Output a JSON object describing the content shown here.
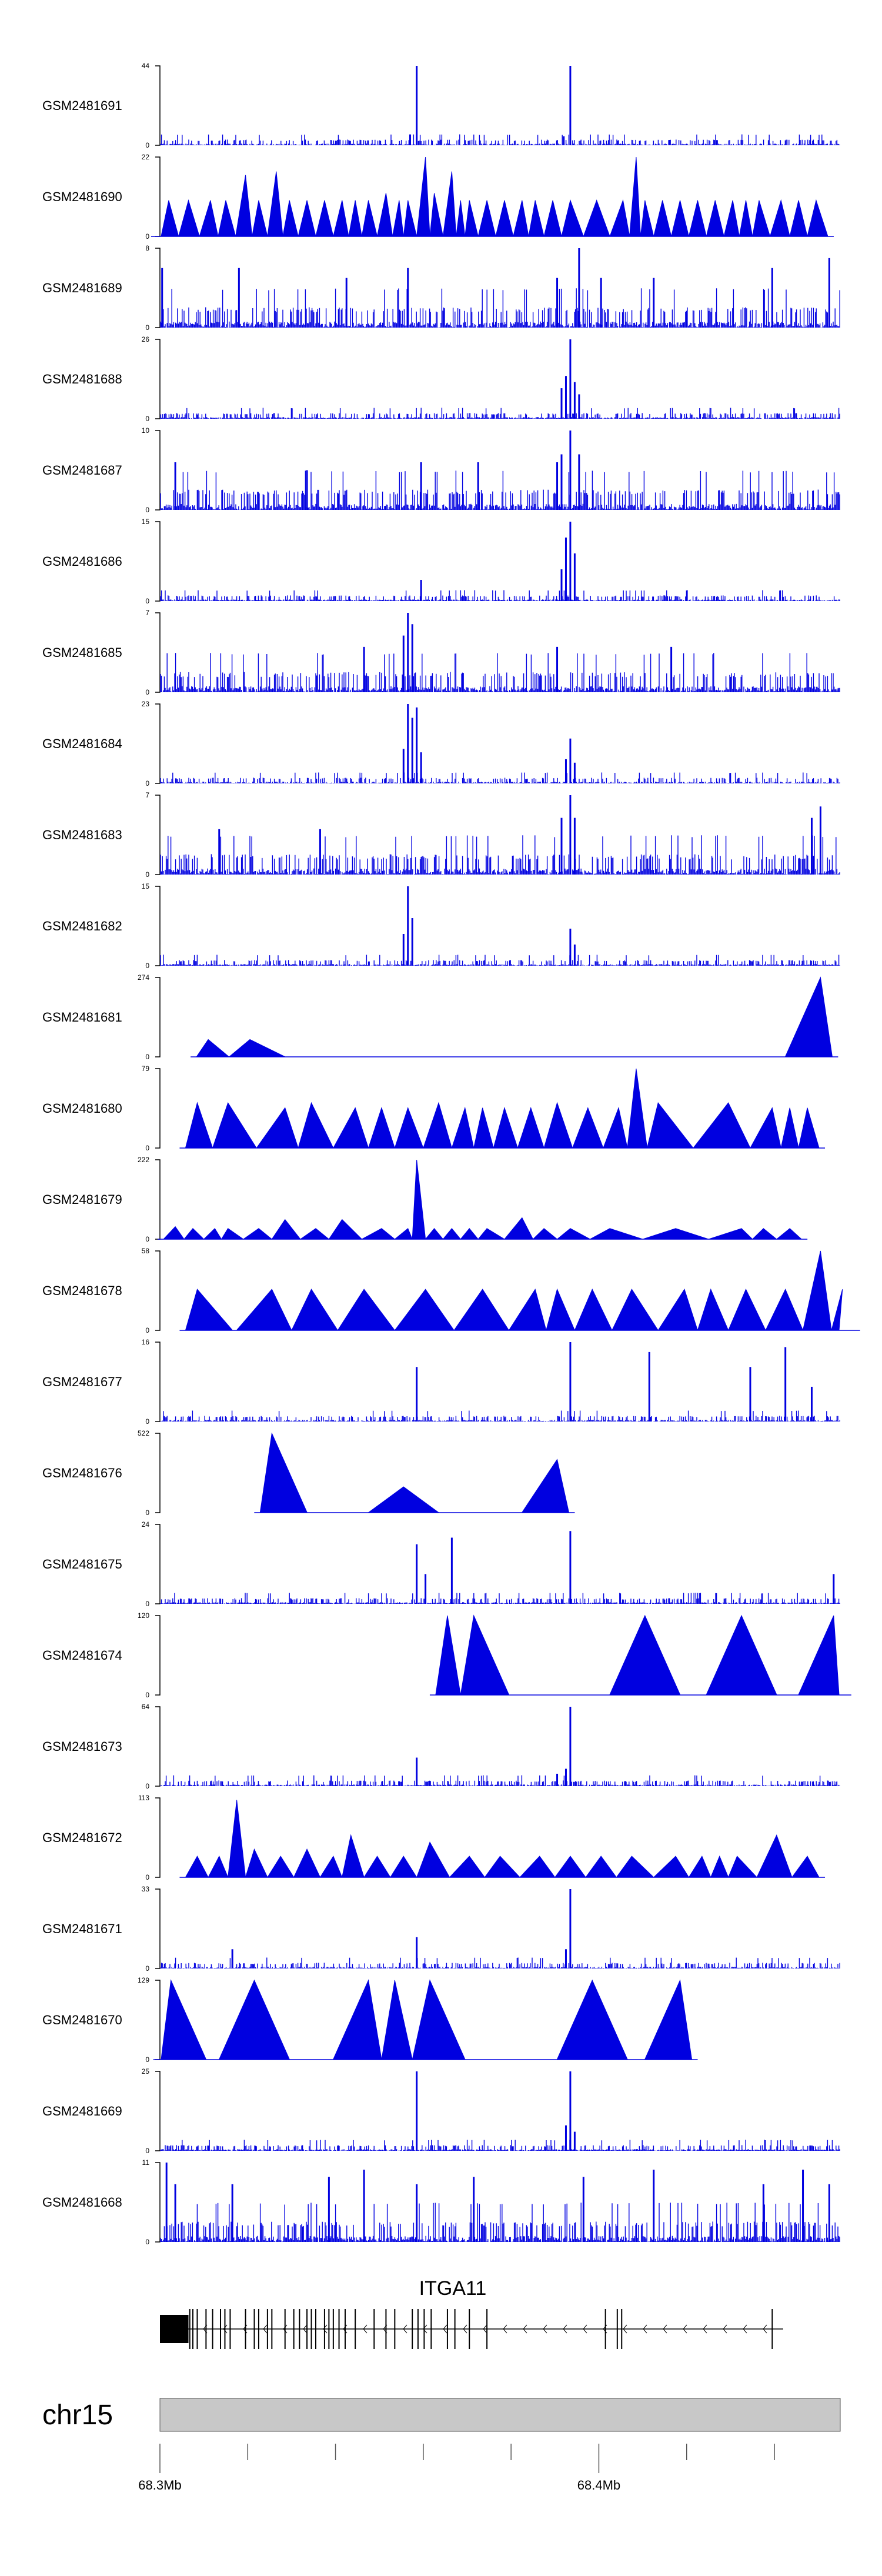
{
  "chart_data": {
    "type": "area",
    "description_ids": "coverage tracks for GEO samples over a genomic window on chr15",
    "chromosome": "chr15",
    "x_range_mb": [
      68.3,
      68.455
    ],
    "x_tick_labels": [
      {
        "pos": 68.3,
        "label": "68.3Mb"
      },
      {
        "pos": 68.4,
        "label": "68.4Mb"
      }
    ],
    "minor_ticks_mb": [
      68.32,
      68.34,
      68.36,
      68.38,
      68.42,
      68.44
    ],
    "gene": {
      "name": "ITGA11",
      "strand": "-",
      "start_mb": 68.3,
      "end_mb": 68.442,
      "thick_block_mb": [
        68.3,
        68.3065
      ],
      "exons_mb": [
        68.3068,
        68.3075,
        68.3085,
        68.3105,
        68.312,
        68.3138,
        68.3148,
        68.316,
        68.3195,
        68.3215,
        68.3225,
        68.3245,
        68.3255,
        68.3285,
        68.3305,
        68.3318,
        68.3335,
        68.3345,
        68.3355,
        68.3375,
        68.3385,
        68.3395,
        68.3408,
        68.3422,
        68.3445,
        68.3488,
        68.3515,
        68.3535,
        68.3575,
        68.3588,
        68.3602,
        68.3618,
        68.3655,
        68.3672,
        68.3705,
        68.3745,
        68.4015,
        68.4042,
        68.4052,
        68.4395
      ]
    },
    "tracks": [
      {
        "name": "GSM2481691",
        "ymax": 44,
        "style": "dense",
        "peaks": [
          [
            68.3585,
            44
          ],
          [
            68.3935,
            44
          ],
          [
            68.357,
            6
          ],
          [
            68.392,
            5
          ]
        ]
      },
      {
        "name": "GSM2481690",
        "ymax": 22,
        "style": "tri",
        "peaks": [
          [
            68.302,
            10
          ],
          [
            68.3065,
            10
          ],
          [
            68.3115,
            10
          ],
          [
            68.315,
            10
          ],
          [
            68.3195,
            17
          ],
          [
            68.3225,
            10
          ],
          [
            68.3265,
            18
          ],
          [
            68.3295,
            10
          ],
          [
            68.3335,
            10
          ],
          [
            68.3375,
            10
          ],
          [
            68.3415,
            10
          ],
          [
            68.3445,
            10
          ],
          [
            68.3475,
            10
          ],
          [
            68.3515,
            12
          ],
          [
            68.3545,
            10
          ],
          [
            68.3565,
            10
          ],
          [
            68.3605,
            22
          ],
          [
            68.3625,
            12
          ],
          [
            68.3665,
            18
          ],
          [
            68.3685,
            10
          ],
          [
            68.3705,
            10
          ],
          [
            68.3745,
            10
          ],
          [
            68.3785,
            10
          ],
          [
            68.3825,
            10
          ],
          [
            68.3855,
            10
          ],
          [
            68.3895,
            10
          ],
          [
            68.3935,
            10
          ],
          [
            68.3995,
            10
          ],
          [
            68.4055,
            10
          ],
          [
            68.4085,
            22
          ],
          [
            68.4105,
            10
          ],
          [
            68.4145,
            10
          ],
          [
            68.4185,
            10
          ],
          [
            68.4225,
            10
          ],
          [
            68.4265,
            10
          ],
          [
            68.4305,
            10
          ],
          [
            68.4335,
            10
          ],
          [
            68.4365,
            10
          ],
          [
            68.4415,
            10
          ],
          [
            68.4455,
            10
          ],
          [
            68.4495,
            10
          ]
        ]
      },
      {
        "name": "GSM2481689",
        "ymax": 8,
        "style": "dense",
        "peaks": [
          [
            68.3005,
            6
          ],
          [
            68.318,
            6
          ],
          [
            68.3425,
            5
          ],
          [
            68.3565,
            6
          ],
          [
            68.3905,
            5
          ],
          [
            68.3955,
            8
          ],
          [
            68.4005,
            5
          ],
          [
            68.4125,
            5
          ],
          [
            68.4395,
            6
          ],
          [
            68.4525,
            7
          ]
        ]
      },
      {
        "name": "GSM2481688",
        "ymax": 26,
        "style": "dense",
        "peaks": [
          [
            68.3935,
            26
          ],
          [
            68.3925,
            14
          ],
          [
            68.3915,
            10
          ],
          [
            68.3945,
            12
          ],
          [
            68.3955,
            8
          ]
        ]
      },
      {
        "name": "GSM2481687",
        "ymax": 10,
        "style": "dense",
        "peaks": [
          [
            68.3935,
            10
          ],
          [
            68.3915,
            7
          ],
          [
            68.3905,
            6
          ],
          [
            68.3955,
            7
          ],
          [
            68.3725,
            6
          ],
          [
            68.3595,
            6
          ],
          [
            68.3335,
            5
          ],
          [
            68.3035,
            6
          ]
        ]
      },
      {
        "name": "GSM2481686",
        "ymax": 15,
        "style": "dense",
        "peaks": [
          [
            68.3935,
            15
          ],
          [
            68.3925,
            12
          ],
          [
            68.3945,
            9
          ],
          [
            68.3915,
            6
          ],
          [
            68.3595,
            4
          ]
        ]
      },
      {
        "name": "GSM2481685",
        "ymax": 7,
        "style": "dense",
        "peaks": [
          [
            68.3565,
            7
          ],
          [
            68.3575,
            6
          ],
          [
            68.3555,
            5
          ],
          [
            68.3905,
            4
          ],
          [
            68.3465,
            4
          ],
          [
            68.4165,
            4
          ]
        ]
      },
      {
        "name": "GSM2481684",
        "ymax": 23,
        "style": "dense",
        "peaks": [
          [
            68.3565,
            23
          ],
          [
            68.3575,
            19
          ],
          [
            68.3585,
            22
          ],
          [
            68.3555,
            10
          ],
          [
            68.3595,
            9
          ],
          [
            68.3935,
            13
          ],
          [
            68.3925,
            7
          ],
          [
            68.3945,
            6
          ]
        ]
      },
      {
        "name": "GSM2481683",
        "ymax": 7,
        "style": "dense",
        "peaks": [
          [
            68.3935,
            7
          ],
          [
            68.3945,
            5
          ],
          [
            68.3915,
            5
          ],
          [
            68.4505,
            6
          ],
          [
            68.4485,
            5
          ],
          [
            68.3365,
            4
          ],
          [
            68.3135,
            4
          ]
        ]
      },
      {
        "name": "GSM2481682",
        "ymax": 15,
        "style": "dense",
        "peaks": [
          [
            68.3565,
            15
          ],
          [
            68.3575,
            9
          ],
          [
            68.3555,
            6
          ],
          [
            68.3935,
            7
          ],
          [
            68.3945,
            4
          ]
        ]
      },
      {
        "name": "GSM2481681",
        "ymax": 274,
        "style": "tri",
        "peaks": [
          [
            68.311,
            60
          ],
          [
            68.3205,
            60
          ],
          [
            68.4505,
            274
          ]
        ]
      },
      {
        "name": "GSM2481680",
        "ymax": 79,
        "style": "tri",
        "peaks": [
          [
            68.3085,
            45
          ],
          [
            68.3155,
            45
          ],
          [
            68.3285,
            40
          ],
          [
            68.3345,
            45
          ],
          [
            68.3445,
            40
          ],
          [
            68.3505,
            40
          ],
          [
            68.3565,
            40
          ],
          [
            68.3635,
            45
          ],
          [
            68.3695,
            40
          ],
          [
            68.3735,
            40
          ],
          [
            68.3785,
            40
          ],
          [
            68.3845,
            40
          ],
          [
            68.3905,
            45
          ],
          [
            68.3975,
            40
          ],
          [
            68.4045,
            40
          ],
          [
            68.4085,
            79
          ],
          [
            68.4135,
            45
          ],
          [
            68.4295,
            45
          ],
          [
            68.4395,
            40
          ],
          [
            68.4435,
            40
          ],
          [
            68.4475,
            40
          ]
        ]
      },
      {
        "name": "GSM2481679",
        "ymax": 222,
        "style": "tri",
        "peaks": [
          [
            68.3035,
            35
          ],
          [
            68.3075,
            30
          ],
          [
            68.3125,
            30
          ],
          [
            68.3155,
            30
          ],
          [
            68.3225,
            30
          ],
          [
            68.3285,
            55
          ],
          [
            68.3355,
            30
          ],
          [
            68.3415,
            55
          ],
          [
            68.3505,
            30
          ],
          [
            68.3565,
            30
          ],
          [
            68.3585,
            222
          ],
          [
            68.3625,
            30
          ],
          [
            68.3665,
            30
          ],
          [
            68.3705,
            30
          ],
          [
            68.3745,
            30
          ],
          [
            68.3825,
            60
          ],
          [
            68.3875,
            30
          ],
          [
            68.3935,
            30
          ],
          [
            68.4025,
            30
          ],
          [
            68.4175,
            30
          ],
          [
            68.4325,
            30
          ],
          [
            68.4375,
            30
          ],
          [
            68.4435,
            30
          ]
        ]
      },
      {
        "name": "GSM2481678",
        "ymax": 58,
        "style": "tri",
        "peaks": [
          [
            68.3085,
            30
          ],
          [
            68.3255,
            30
          ],
          [
            68.3345,
            30
          ],
          [
            68.3465,
            30
          ],
          [
            68.3605,
            30
          ],
          [
            68.3735,
            30
          ],
          [
            68.3855,
            30
          ],
          [
            68.3905,
            30
          ],
          [
            68.3985,
            30
          ],
          [
            68.4075,
            30
          ],
          [
            68.4195,
            30
          ],
          [
            68.4255,
            30
          ],
          [
            68.4335,
            30
          ],
          [
            68.4425,
            30
          ],
          [
            68.4505,
            58
          ],
          [
            68.4555,
            30
          ]
        ]
      },
      {
        "name": "GSM2481677",
        "ymax": 16,
        "style": "dense",
        "peaks": [
          [
            68.3585,
            11
          ],
          [
            68.3935,
            16
          ],
          [
            68.4115,
            14
          ],
          [
            68.4345,
            11
          ],
          [
            68.4425,
            15
          ],
          [
            68.4485,
            7
          ]
        ]
      },
      {
        "name": "GSM2481676",
        "ymax": 522,
        "style": "tri",
        "peaks": [
          [
            68.3255,
            522
          ],
          [
            68.3555,
            170
          ],
          [
            68.3905,
            350
          ]
        ]
      },
      {
        "name": "GSM2481675",
        "ymax": 24,
        "style": "dense",
        "peaks": [
          [
            68.3585,
            18
          ],
          [
            68.3605,
            9
          ],
          [
            68.3665,
            20
          ],
          [
            68.3935,
            22
          ],
          [
            68.4535,
            9
          ]
        ]
      },
      {
        "name": "GSM2481674",
        "ymax": 120,
        "style": "tri",
        "peaks": [
          [
            68.3655,
            120
          ],
          [
            68.3715,
            120
          ],
          [
            68.4105,
            120
          ],
          [
            68.4325,
            120
          ],
          [
            68.4535,
            120
          ]
        ]
      },
      {
        "name": "GSM2481673",
        "ymax": 64,
        "style": "dense",
        "peaks": [
          [
            68.3935,
            64
          ],
          [
            68.3925,
            14
          ],
          [
            68.3585,
            23
          ],
          [
            68.3905,
            10
          ]
        ]
      },
      {
        "name": "GSM2481672",
        "ymax": 113,
        "style": "tri",
        "peaks": [
          [
            68.3085,
            30
          ],
          [
            68.3135,
            30
          ],
          [
            68.3175,
            110
          ],
          [
            68.3215,
            40
          ],
          [
            68.3275,
            30
          ],
          [
            68.3335,
            40
          ],
          [
            68.3395,
            30
          ],
          [
            68.3435,
            60
          ],
          [
            68.3495,
            30
          ],
          [
            68.3555,
            30
          ],
          [
            68.3615,
            50
          ],
          [
            68.3705,
            30
          ],
          [
            68.3775,
            30
          ],
          [
            68.3865,
            30
          ],
          [
            68.3935,
            30
          ],
          [
            68.4005,
            30
          ],
          [
            68.4075,
            30
          ],
          [
            68.4175,
            30
          ],
          [
            68.4235,
            30
          ],
          [
            68.4275,
            30
          ],
          [
            68.4315,
            30
          ],
          [
            68.4405,
            60
          ],
          [
            68.4475,
            30
          ]
        ]
      },
      {
        "name": "GSM2481671",
        "ymax": 33,
        "style": "dense",
        "peaks": [
          [
            68.3935,
            33
          ],
          [
            68.3585,
            13
          ],
          [
            68.3925,
            8
          ],
          [
            68.3165,
            8
          ]
        ]
      },
      {
        "name": "GSM2481670",
        "ymax": 129,
        "style": "tri",
        "peaks": [
          [
            68.3025,
            129
          ],
          [
            68.3215,
            129
          ],
          [
            68.3475,
            129
          ],
          [
            68.3535,
            129
          ],
          [
            68.3615,
            129
          ],
          [
            68.3985,
            129
          ],
          [
            68.4185,
            129
          ]
        ]
      },
      {
        "name": "GSM2481669",
        "ymax": 25,
        "style": "dense",
        "peaks": [
          [
            68.3585,
            25
          ],
          [
            68.3935,
            25
          ],
          [
            68.3925,
            8
          ],
          [
            68.3945,
            6
          ]
        ]
      },
      {
        "name": "GSM2481668",
        "ymax": 11,
        "style": "dense",
        "peaks": [
          [
            68.3015,
            11
          ],
          [
            68.3035,
            8
          ],
          [
            68.3165,
            8
          ],
          [
            68.3385,
            9
          ],
          [
            68.3465,
            10
          ],
          [
            68.3585,
            8
          ],
          [
            68.3715,
            9
          ],
          [
            68.3965,
            9
          ],
          [
            68.4125,
            10
          ],
          [
            68.4375,
            8
          ],
          [
            68.4465,
            10
          ],
          [
            68.4525,
            8
          ]
        ]
      }
    ]
  }
}
